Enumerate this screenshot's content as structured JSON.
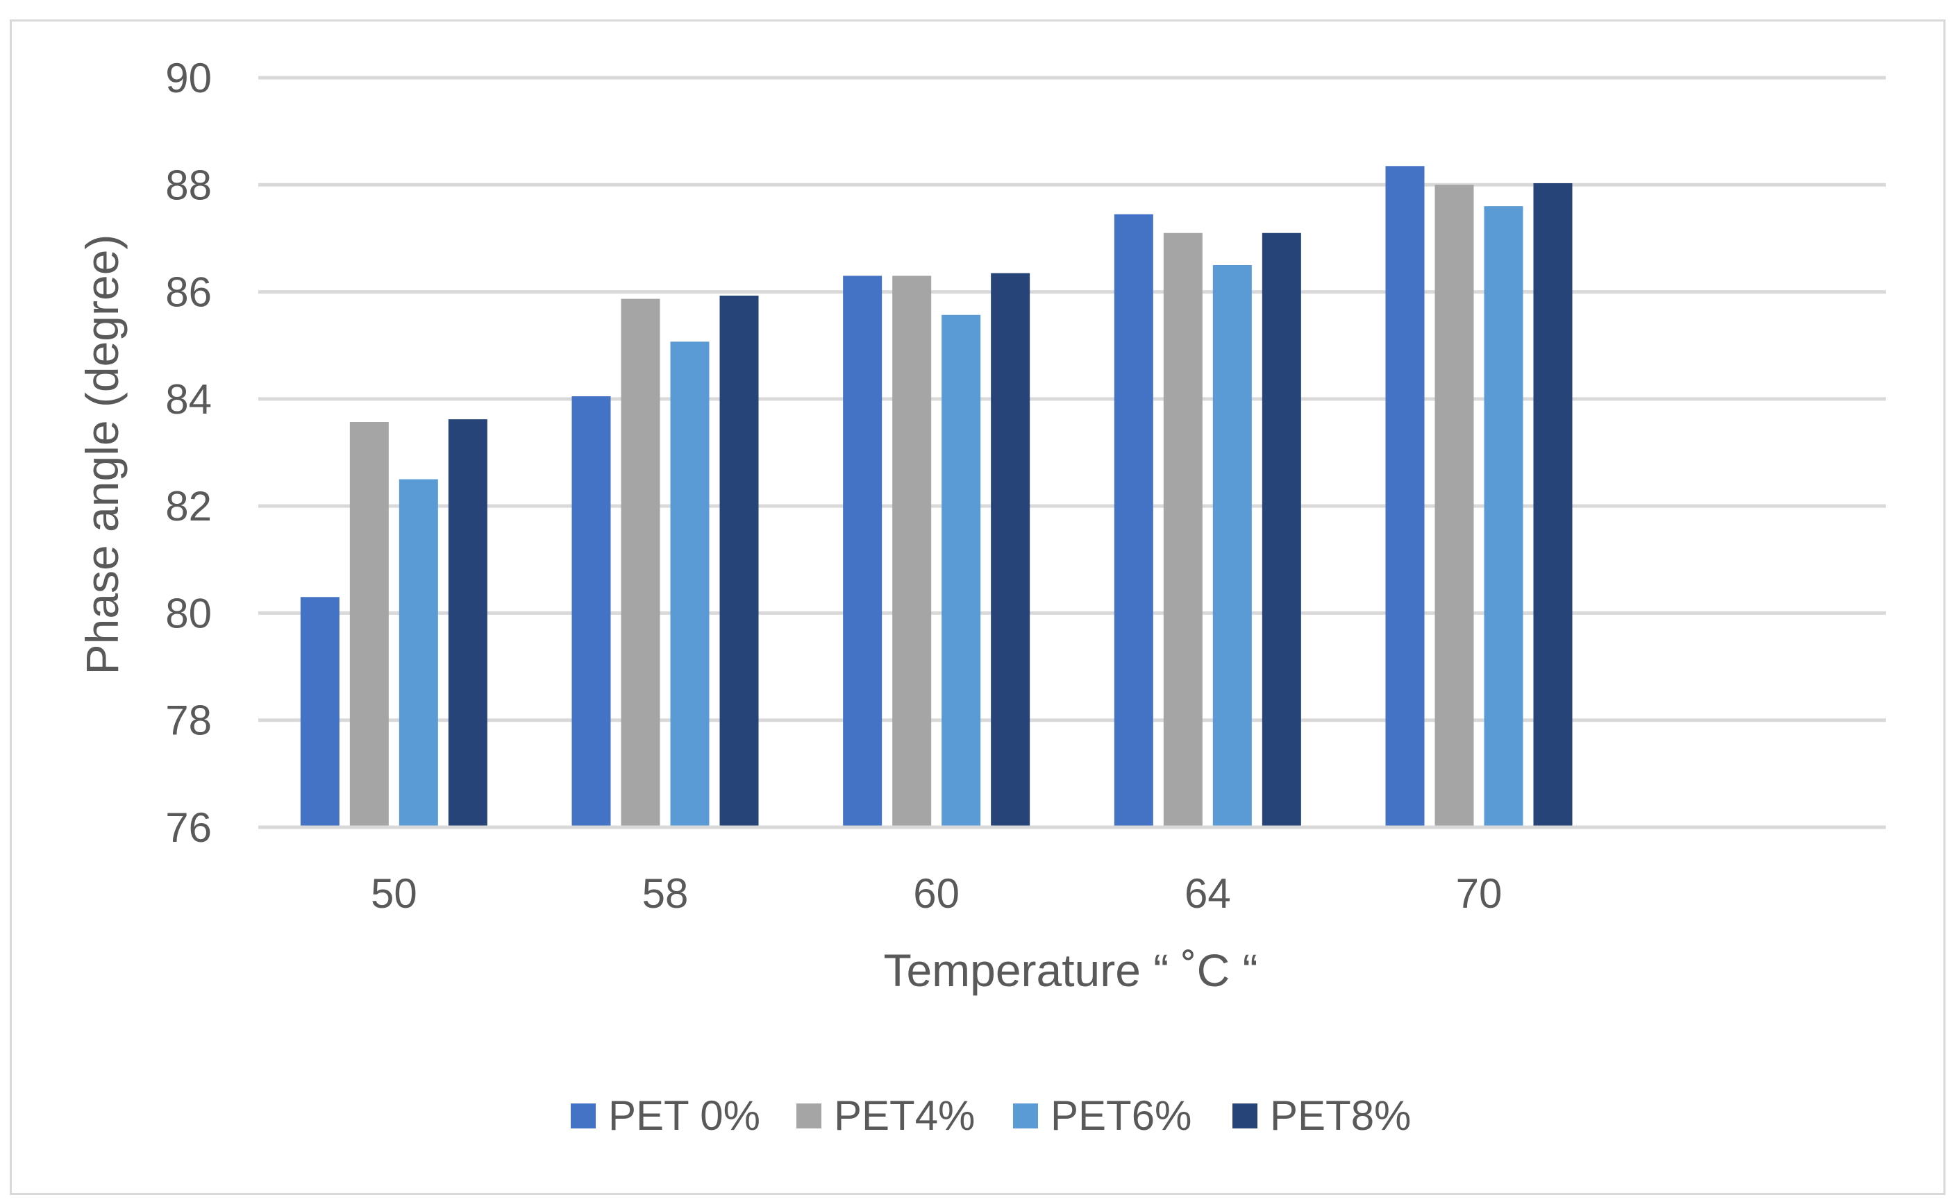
{
  "chart_data": {
    "type": "bar",
    "title": "",
    "xlabel": "Temperature “ ˚C “",
    "ylabel": "Phase angle (degree)",
    "ylim": [
      76,
      90
    ],
    "yticks": [
      "76",
      "78",
      "80",
      "82",
      "84",
      "86",
      "88",
      "90"
    ],
    "categories": [
      "50",
      "58",
      "60",
      "64",
      "70"
    ],
    "grid": true,
    "legend_position": "bottom",
    "series": [
      {
        "name": "PET 0%",
        "color": "#4472c4",
        "values": [
          80.3,
          84.05,
          86.3,
          87.45,
          88.35
        ]
      },
      {
        "name": "PET4%",
        "color": "#a5a5a5",
        "values": [
          83.57,
          85.87,
          86.3,
          87.1,
          88.0
        ]
      },
      {
        "name": "PET6%",
        "color": "#5b9bd5",
        "values": [
          82.5,
          85.07,
          85.57,
          86.5,
          87.6
        ]
      },
      {
        "name": "PET8%",
        "color": "#264478",
        "values": [
          83.62,
          85.93,
          86.35,
          87.1,
          88.03
        ]
      }
    ]
  }
}
